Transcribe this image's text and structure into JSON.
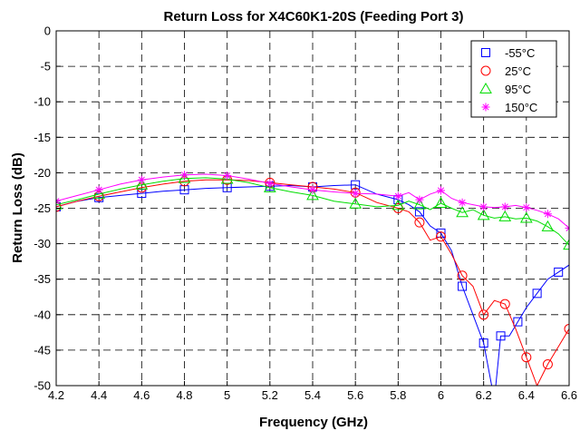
{
  "chart_data": {
    "type": "line",
    "title": "Return Loss for X4C60K1-20S (Feeding Port 3)",
    "xlabel": "Frequency (GHz)",
    "ylabel": "Return Loss (dB)",
    "xlim": [
      4.2,
      6.6
    ],
    "ylim": [
      -50,
      0
    ],
    "xticks": [
      4.2,
      4.4,
      4.6,
      4.8,
      5.0,
      5.2,
      5.4,
      5.6,
      5.8,
      6.0,
      6.2,
      6.4,
      6.6
    ],
    "xtick_labels": [
      "4.2",
      "4.4",
      "4.6",
      "4.8",
      "5",
      "5.2",
      "5.4",
      "5.6",
      "5.8",
      "6",
      "6.2",
      "6.4",
      "6.6"
    ],
    "yticks": [
      0,
      -5,
      -10,
      -15,
      -20,
      -25,
      -30,
      -35,
      -40,
      -45,
      -50
    ],
    "ytick_labels": [
      "0",
      "-5",
      "-10",
      "-15",
      "-20",
      "-25",
      "-30",
      "-35",
      "-40",
      "-45",
      "-50"
    ],
    "grid": true,
    "legend_position": "top-right",
    "series": [
      {
        "name": "-55°C",
        "color": "#0000ff",
        "marker": "square",
        "x": [
          4.2,
          4.3,
          4.4,
          4.5,
          4.6,
          4.7,
          4.8,
          4.9,
          5.0,
          5.1,
          5.2,
          5.3,
          5.4,
          5.5,
          5.6,
          5.7,
          5.8,
          5.85,
          5.9,
          5.95,
          6.0,
          6.05,
          6.1,
          6.15,
          6.2,
          6.25,
          6.28,
          6.32,
          6.36,
          6.4,
          6.45,
          6.5,
          6.55,
          6.6
        ],
        "y": [
          -24.8,
          -24.0,
          -23.5,
          -23.2,
          -22.9,
          -22.6,
          -22.4,
          -22.2,
          -22.1,
          -22.0,
          -21.9,
          -21.8,
          -22.0,
          -21.8,
          -21.7,
          -23.0,
          -23.8,
          -24.5,
          -25.5,
          -27.5,
          -28.5,
          -31,
          -36,
          -40,
          -44,
          -52,
          -43,
          -43,
          -41,
          -39,
          -37,
          -35,
          -34,
          -33
        ]
      },
      {
        "name": "25°C",
        "color": "#ff0000",
        "marker": "circle",
        "x": [
          4.2,
          4.3,
          4.4,
          4.5,
          4.6,
          4.7,
          4.8,
          4.9,
          5.0,
          5.1,
          5.2,
          5.3,
          5.4,
          5.5,
          5.6,
          5.7,
          5.8,
          5.85,
          5.9,
          5.95,
          6.0,
          6.05,
          6.1,
          6.15,
          6.2,
          6.25,
          6.3,
          6.35,
          6.4,
          6.45,
          6.5,
          6.55,
          6.6
        ],
        "y": [
          -24.8,
          -24.0,
          -23.3,
          -22.7,
          -22.1,
          -21.6,
          -21.2,
          -21.0,
          -21.0,
          -21.1,
          -21.4,
          -21.7,
          -22.0,
          -22.3,
          -22.8,
          -24.2,
          -25.0,
          -25.5,
          -27.0,
          -29.5,
          -29.0,
          -31.5,
          -34.5,
          -36.0,
          -40.0,
          -38.0,
          -38.5,
          -42.0,
          -46.0,
          -50,
          -47.0,
          -44.5,
          -42.0
        ]
      },
      {
        "name": "95°C",
        "color": "#00dd00",
        "marker": "triangle",
        "x": [
          4.2,
          4.3,
          4.4,
          4.5,
          4.6,
          4.7,
          4.8,
          4.9,
          5.0,
          5.1,
          5.2,
          5.3,
          5.4,
          5.5,
          5.6,
          5.7,
          5.8,
          5.85,
          5.9,
          5.95,
          6.0,
          6.05,
          6.1,
          6.15,
          6.2,
          6.25,
          6.3,
          6.35,
          6.4,
          6.45,
          6.5,
          6.55,
          6.6
        ],
        "y": [
          -24.5,
          -23.8,
          -23.0,
          -22.3,
          -21.7,
          -21.2,
          -20.8,
          -20.7,
          -20.9,
          -21.4,
          -22.1,
          -22.7,
          -23.2,
          -24.0,
          -24.4,
          -24.8,
          -24.6,
          -24.0,
          -24.5,
          -25.2,
          -24.3,
          -25.0,
          -25.6,
          -25.2,
          -26.0,
          -26.4,
          -26.2,
          -26.5,
          -26.4,
          -26.8,
          -27.6,
          -28.6,
          -30.2
        ]
      },
      {
        "name": "150°C",
        "color": "#ff00ff",
        "marker": "star",
        "x": [
          4.2,
          4.3,
          4.4,
          4.5,
          4.6,
          4.7,
          4.8,
          4.9,
          5.0,
          5.1,
          5.2,
          5.3,
          5.4,
          5.5,
          5.6,
          5.7,
          5.8,
          5.85,
          5.9,
          5.95,
          6.0,
          6.05,
          6.1,
          6.15,
          6.2,
          6.25,
          6.3,
          6.35,
          6.4,
          6.45,
          6.5,
          6.55,
          6.6
        ],
        "y": [
          -24.0,
          -23.2,
          -22.4,
          -21.6,
          -21.0,
          -20.6,
          -20.3,
          -20.2,
          -20.4,
          -20.9,
          -21.5,
          -22.0,
          -22.4,
          -22.7,
          -22.9,
          -23.0,
          -23.3,
          -22.8,
          -23.8,
          -23.0,
          -22.5,
          -23.6,
          -24.2,
          -24.5,
          -24.8,
          -24.9,
          -24.8,
          -24.6,
          -24.9,
          -25.3,
          -25.8,
          -26.5,
          -27.8
        ]
      }
    ]
  }
}
